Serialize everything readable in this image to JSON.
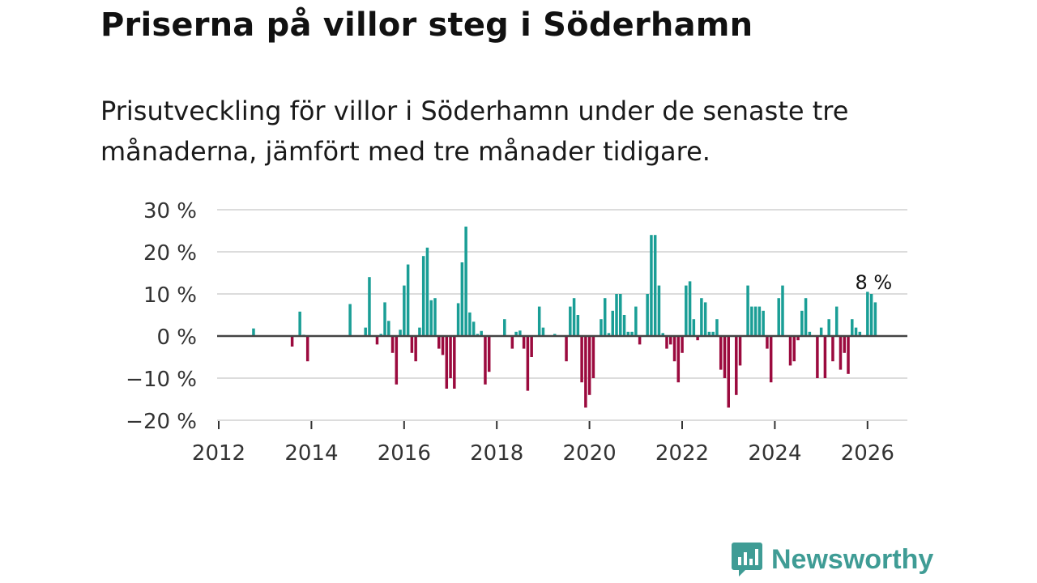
{
  "title": "Priserna på villor steg i Söderhamn",
  "subtitle": "Prisutveckling för villor i Söderhamn under de senaste tre månaderna, jämfört med tre månader tidigare.",
  "brand": {
    "name": "Newsworthy",
    "color": "#3f9c95"
  },
  "chart_data": {
    "type": "bar",
    "title": "Priserna på villor steg i Söderhamn",
    "xlabel": "",
    "ylabel": "",
    "ylim": [
      -20,
      30
    ],
    "xlim": [
      "2012-01",
      "2026-11"
    ],
    "grid": true,
    "yticks": [
      30,
      20,
      10,
      0,
      -10,
      -20
    ],
    "ytick_labels": [
      "30 %",
      "20 %",
      "10 %",
      "0 %",
      "−10 %",
      "−20 %"
    ],
    "xticks": [
      "2012",
      "2014",
      "2016",
      "2018",
      "2020",
      "2022",
      "2024",
      "2026"
    ],
    "colors": {
      "positive": "#1a9e96",
      "negative": "#9b0a3e"
    },
    "annotation": {
      "text": "8 %",
      "month": "2026-03"
    },
    "months": [
      "2012-10",
      "2013-08",
      "2013-10",
      "2013-11",
      "2013-12",
      "2014-11",
      "2015-03",
      "2015-04",
      "2015-06",
      "2015-07",
      "2015-08",
      "2015-09",
      "2015-10",
      "2015-11",
      "2015-12",
      "2016-01",
      "2016-02",
      "2016-03",
      "2016-04",
      "2016-05",
      "2016-06",
      "2016-07",
      "2016-08",
      "2016-09",
      "2016-10",
      "2016-11",
      "2016-12",
      "2017-01",
      "2017-02",
      "2017-03",
      "2017-04",
      "2017-05",
      "2017-06",
      "2017-07",
      "2017-08",
      "2017-09",
      "2017-10",
      "2017-11",
      "2018-03",
      "2018-05",
      "2018-06",
      "2018-07",
      "2018-08",
      "2018-09",
      "2018-10",
      "2018-12",
      "2019-01",
      "2019-04",
      "2019-07",
      "2019-08",
      "2019-09",
      "2019-10",
      "2019-11",
      "2019-12",
      "2020-01",
      "2020-02",
      "2020-04",
      "2020-05",
      "2020-06",
      "2020-07",
      "2020-08",
      "2020-09",
      "2020-10",
      "2020-11",
      "2020-12",
      "2021-01",
      "2021-02",
      "2021-04",
      "2021-05",
      "2021-06",
      "2021-07",
      "2021-08",
      "2021-09",
      "2021-10",
      "2021-11",
      "2021-12",
      "2022-01",
      "2022-02",
      "2022-03",
      "2022-04",
      "2022-05",
      "2022-06",
      "2022-07",
      "2022-08",
      "2022-09",
      "2022-10",
      "2022-11",
      "2022-12",
      "2023-01",
      "2023-03",
      "2023-04",
      "2023-06",
      "2023-07",
      "2023-08",
      "2023-09",
      "2023-10",
      "2023-11",
      "2023-12",
      "2024-02",
      "2024-03",
      "2024-05",
      "2024-06",
      "2024-07",
      "2024-08",
      "2024-09",
      "2024-10",
      "2024-12",
      "2025-01",
      "2025-02",
      "2025-03",
      "2025-04",
      "2025-05",
      "2025-06",
      "2025-07",
      "2025-08",
      "2025-09",
      "2025-10",
      "2025-11",
      "2026-01",
      "2026-02",
      "2026-03"
    ],
    "values": [
      1.8,
      -2.5,
      5.8,
      0.3,
      -6,
      7.6,
      2,
      14,
      -2,
      0.5,
      8,
      3.6,
      -4,
      -11.5,
      1.5,
      12,
      17,
      -4,
      -6,
      2,
      19,
      21,
      8.5,
      9,
      -3,
      -4.5,
      -12.5,
      -10,
      -12.5,
      7.8,
      17.5,
      26,
      5.6,
      3.4,
      0.5,
      1.2,
      -11.5,
      -8.5,
      4,
      -3,
      1,
      1.3,
      -3,
      -13,
      -5,
      7,
      2,
      0.5,
      -6,
      7,
      9,
      5,
      -11,
      -17,
      -14,
      -10,
      4,
      9,
      0.7,
      6,
      10,
      10,
      5,
      1,
      1,
      7,
      -2,
      10,
      24,
      24,
      12,
      0.7,
      -3,
      -2,
      -6,
      -11,
      -4,
      12,
      13,
      4,
      -1,
      9,
      8,
      1,
      1,
      4,
      -8,
      -10,
      -17,
      -14,
      -7,
      12,
      7,
      7,
      7,
      6,
      -3,
      -11,
      9,
      12,
      -7,
      -6,
      -1,
      6,
      9,
      1,
      -10,
      2,
      -10,
      4,
      -6,
      7,
      -8,
      -4,
      -9,
      4,
      2,
      1,
      10.5,
      10,
      8
    ]
  }
}
